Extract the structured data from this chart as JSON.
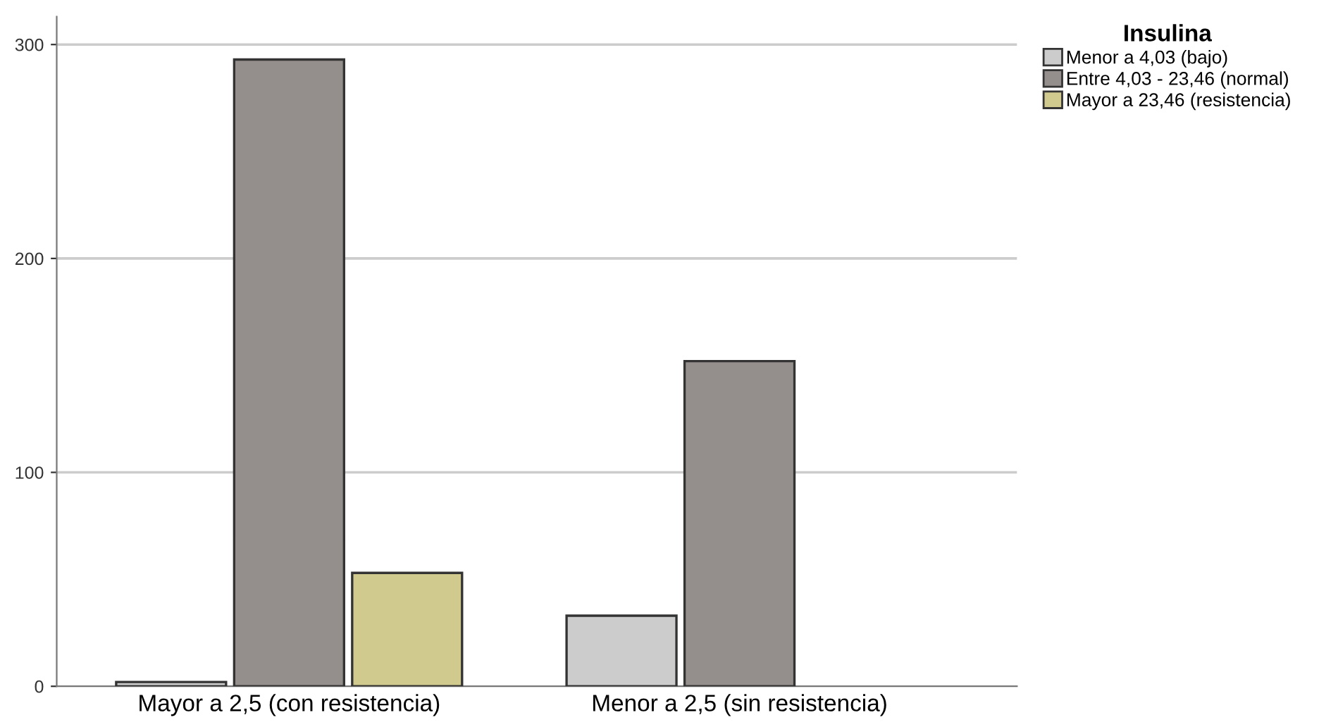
{
  "chart_data": {
    "type": "bar",
    "legend_title": "Insulina",
    "categories": [
      "Mayor a 2,5 (con resistencia)",
      "Menor a 2,5 (sin resistencia)"
    ],
    "series": [
      {
        "name": "Menor a 4,03 (bajo)",
        "color": "#cccccc",
        "values": [
          2,
          33
        ]
      },
      {
        "name": "Entre 4,03 - 23,46 (normal)",
        "color": "#948f8d",
        "values": [
          293,
          152
        ]
      },
      {
        "name": "Mayor a 23,46 (resistencia)",
        "color": "#d1ca8e",
        "values": [
          53,
          null
        ]
      }
    ],
    "ylim": [
      0,
      313
    ],
    "yticks": [
      0,
      100,
      200,
      300
    ],
    "grid": "y",
    "legend": "top right"
  }
}
